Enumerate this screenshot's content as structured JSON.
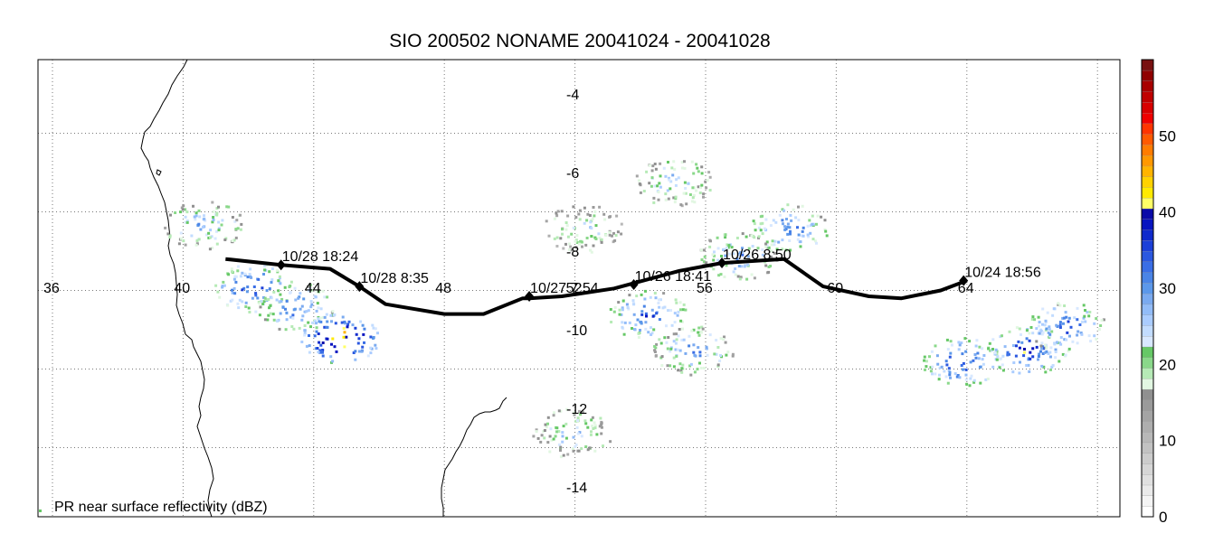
{
  "title": "SIO 200502 NONAME 20041024 - 20041028",
  "legend_text": "PR near surface reflectivity (dBZ)",
  "longitude_labels": [
    "36",
    "40",
    "44",
    "48",
    "52",
    "56",
    "60",
    "64"
  ],
  "latitude_labels": [
    "-4",
    "-6",
    "-8",
    "-10",
    "-12",
    "-14"
  ],
  "track_labels": [
    {
      "text": "10/28 18:24",
      "lon": 43.0,
      "lat": -8.35
    },
    {
      "text": "10/28 8:35",
      "lon": 45.4,
      "lat": -8.9
    },
    {
      "text": "10/27 7:54",
      "lon": 50.6,
      "lat": -9.15
    },
    {
      "text": "10/26 18:41",
      "lon": 53.8,
      "lat": -8.85
    },
    {
      "text": "10/26 8:50",
      "lon": 56.5,
      "lat": -8.3
    },
    {
      "text": "10/24 18:56",
      "lon": 63.9,
      "lat": -8.75
    }
  ],
  "track_points": [
    [
      41.3,
      -8.2
    ],
    [
      43.0,
      -8.35
    ],
    [
      44.5,
      -8.45
    ],
    [
      45.4,
      -8.9
    ],
    [
      46.2,
      -9.35
    ],
    [
      48.0,
      -9.6
    ],
    [
      49.2,
      -9.6
    ],
    [
      50.4,
      -9.2
    ],
    [
      50.6,
      -9.2
    ],
    [
      51.6,
      -9.15
    ],
    [
      53.2,
      -8.95
    ],
    [
      55.2,
      -8.5
    ],
    [
      56.5,
      -8.3
    ],
    [
      58.4,
      -8.2
    ],
    [
      59.6,
      -8.9
    ],
    [
      61.0,
      -9.15
    ],
    [
      62.0,
      -9.2
    ],
    [
      63.2,
      -9.0
    ],
    [
      64.0,
      -8.75
    ]
  ],
  "colorbar": {
    "min": 0,
    "max": 60,
    "ticks": [
      "0",
      "10",
      "20",
      "30",
      "40",
      "50"
    ],
    "colors": [
      "#ffffff",
      "#f4f4f4",
      "#eaeaea",
      "#e0e0e0",
      "#d6d6d6",
      "#cccccc",
      "#c2c2c2",
      "#b8b8b8",
      "#aeaeae",
      "#a4a4a4",
      "#9a9a9a",
      "#909090",
      "#e2f7e2",
      "#b6eab6",
      "#8ad88a",
      "#66c866",
      "#d8e8ff",
      "#c2dcff",
      "#aaccff",
      "#92bcf8",
      "#7aaaf0",
      "#5c98ea",
      "#4a84e6",
      "#3a6ee6",
      "#2b58e0",
      "#1c40d8",
      "#102acc",
      "#0814c0",
      "#0a0aa8",
      "#ffff66",
      "#ffea00",
      "#ffd200",
      "#ffb400",
      "#ff9800",
      "#ff7c00",
      "#ff5a00",
      "#ff3400",
      "#f00000",
      "#d80000",
      "#c00000",
      "#a80000",
      "#900000",
      "#781010"
    ]
  },
  "rain_clusters": [
    {
      "lon": 42.1,
      "lat": -8.9,
      "intensity": 35
    },
    {
      "lon": 43.4,
      "lat": -9.4,
      "intensity": 32
    },
    {
      "lon": 44.8,
      "lat": -10.2,
      "intensity": 45
    },
    {
      "lon": 40.6,
      "lat": -7.3,
      "intensity": 28
    },
    {
      "lon": 54.2,
      "lat": -9.6,
      "intensity": 34
    },
    {
      "lon": 55.6,
      "lat": -10.5,
      "intensity": 30
    },
    {
      "lon": 57.0,
      "lat": -8.1,
      "intensity": 29
    },
    {
      "lon": 58.5,
      "lat": -7.4,
      "intensity": 32
    },
    {
      "lon": 63.8,
      "lat": -10.8,
      "intensity": 36
    },
    {
      "lon": 65.8,
      "lat": -10.5,
      "intensity": 37
    },
    {
      "lon": 67.0,
      "lat": -9.9,
      "intensity": 34
    },
    {
      "lon": 55.0,
      "lat": -6.2,
      "intensity": 27
    },
    {
      "lon": 52.2,
      "lat": -7.4,
      "intensity": 24
    },
    {
      "lon": 51.9,
      "lat": -12.6,
      "intensity": 26
    }
  ],
  "colors": {
    "track": "#000000",
    "coast": "#000000",
    "grid": "#777777"
  }
}
